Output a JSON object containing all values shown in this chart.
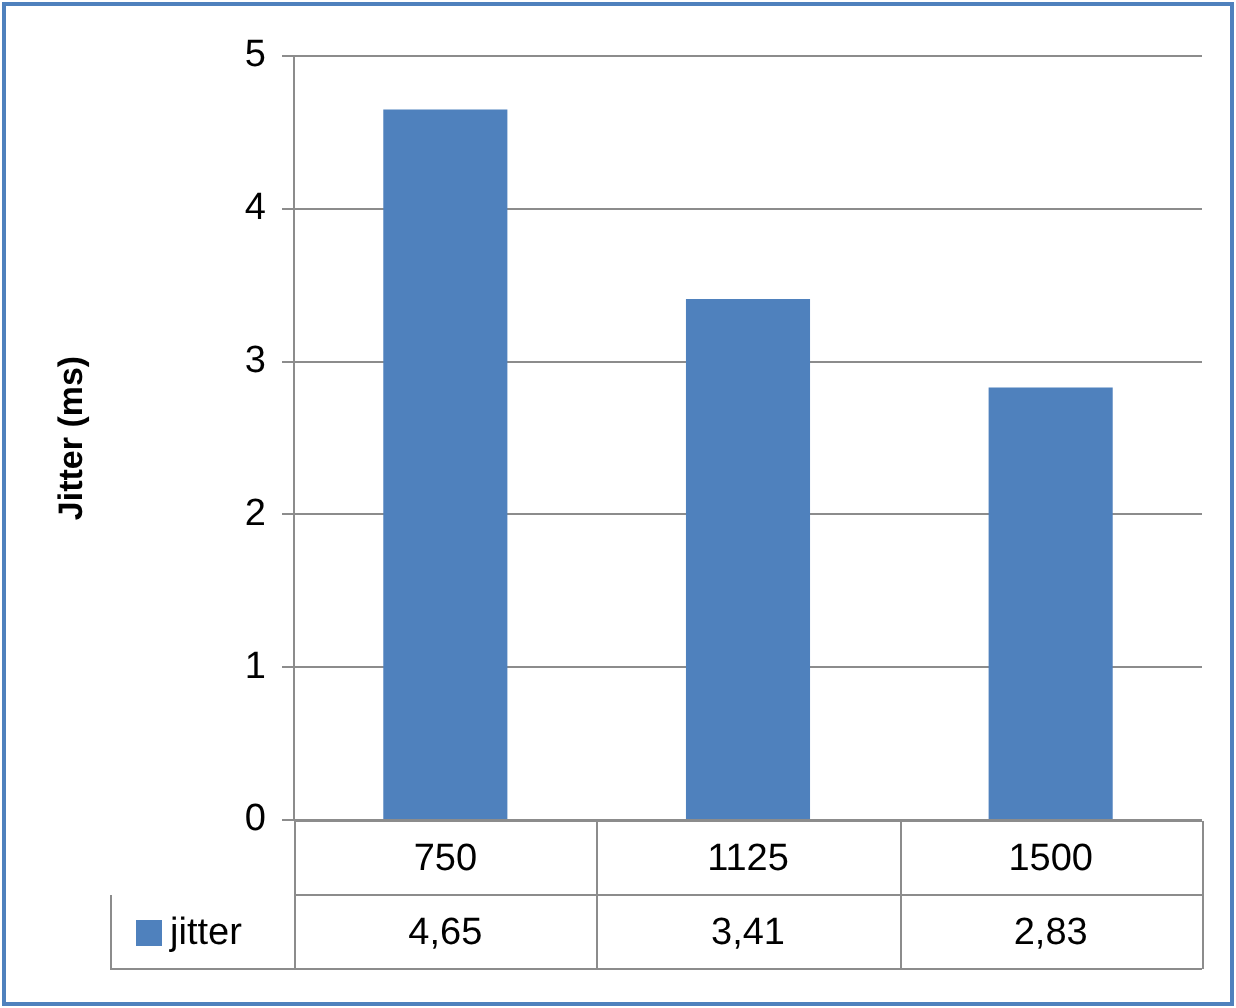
{
  "chart_data": {
    "type": "bar",
    "ylabel": "Jitter (ms)",
    "categories": [
      "750",
      "1125",
      "1500"
    ],
    "series": [
      {
        "name": "jitter",
        "color": "#4f81bd",
        "values": [
          4.65,
          3.41,
          2.83
        ],
        "value_labels": [
          "4,65",
          "3,41",
          "2,83"
        ]
      }
    ],
    "ylim": [
      0,
      5
    ],
    "yticks": [
      0,
      1,
      2,
      3,
      4,
      5
    ],
    "grid": "y",
    "legend": "bottom"
  }
}
